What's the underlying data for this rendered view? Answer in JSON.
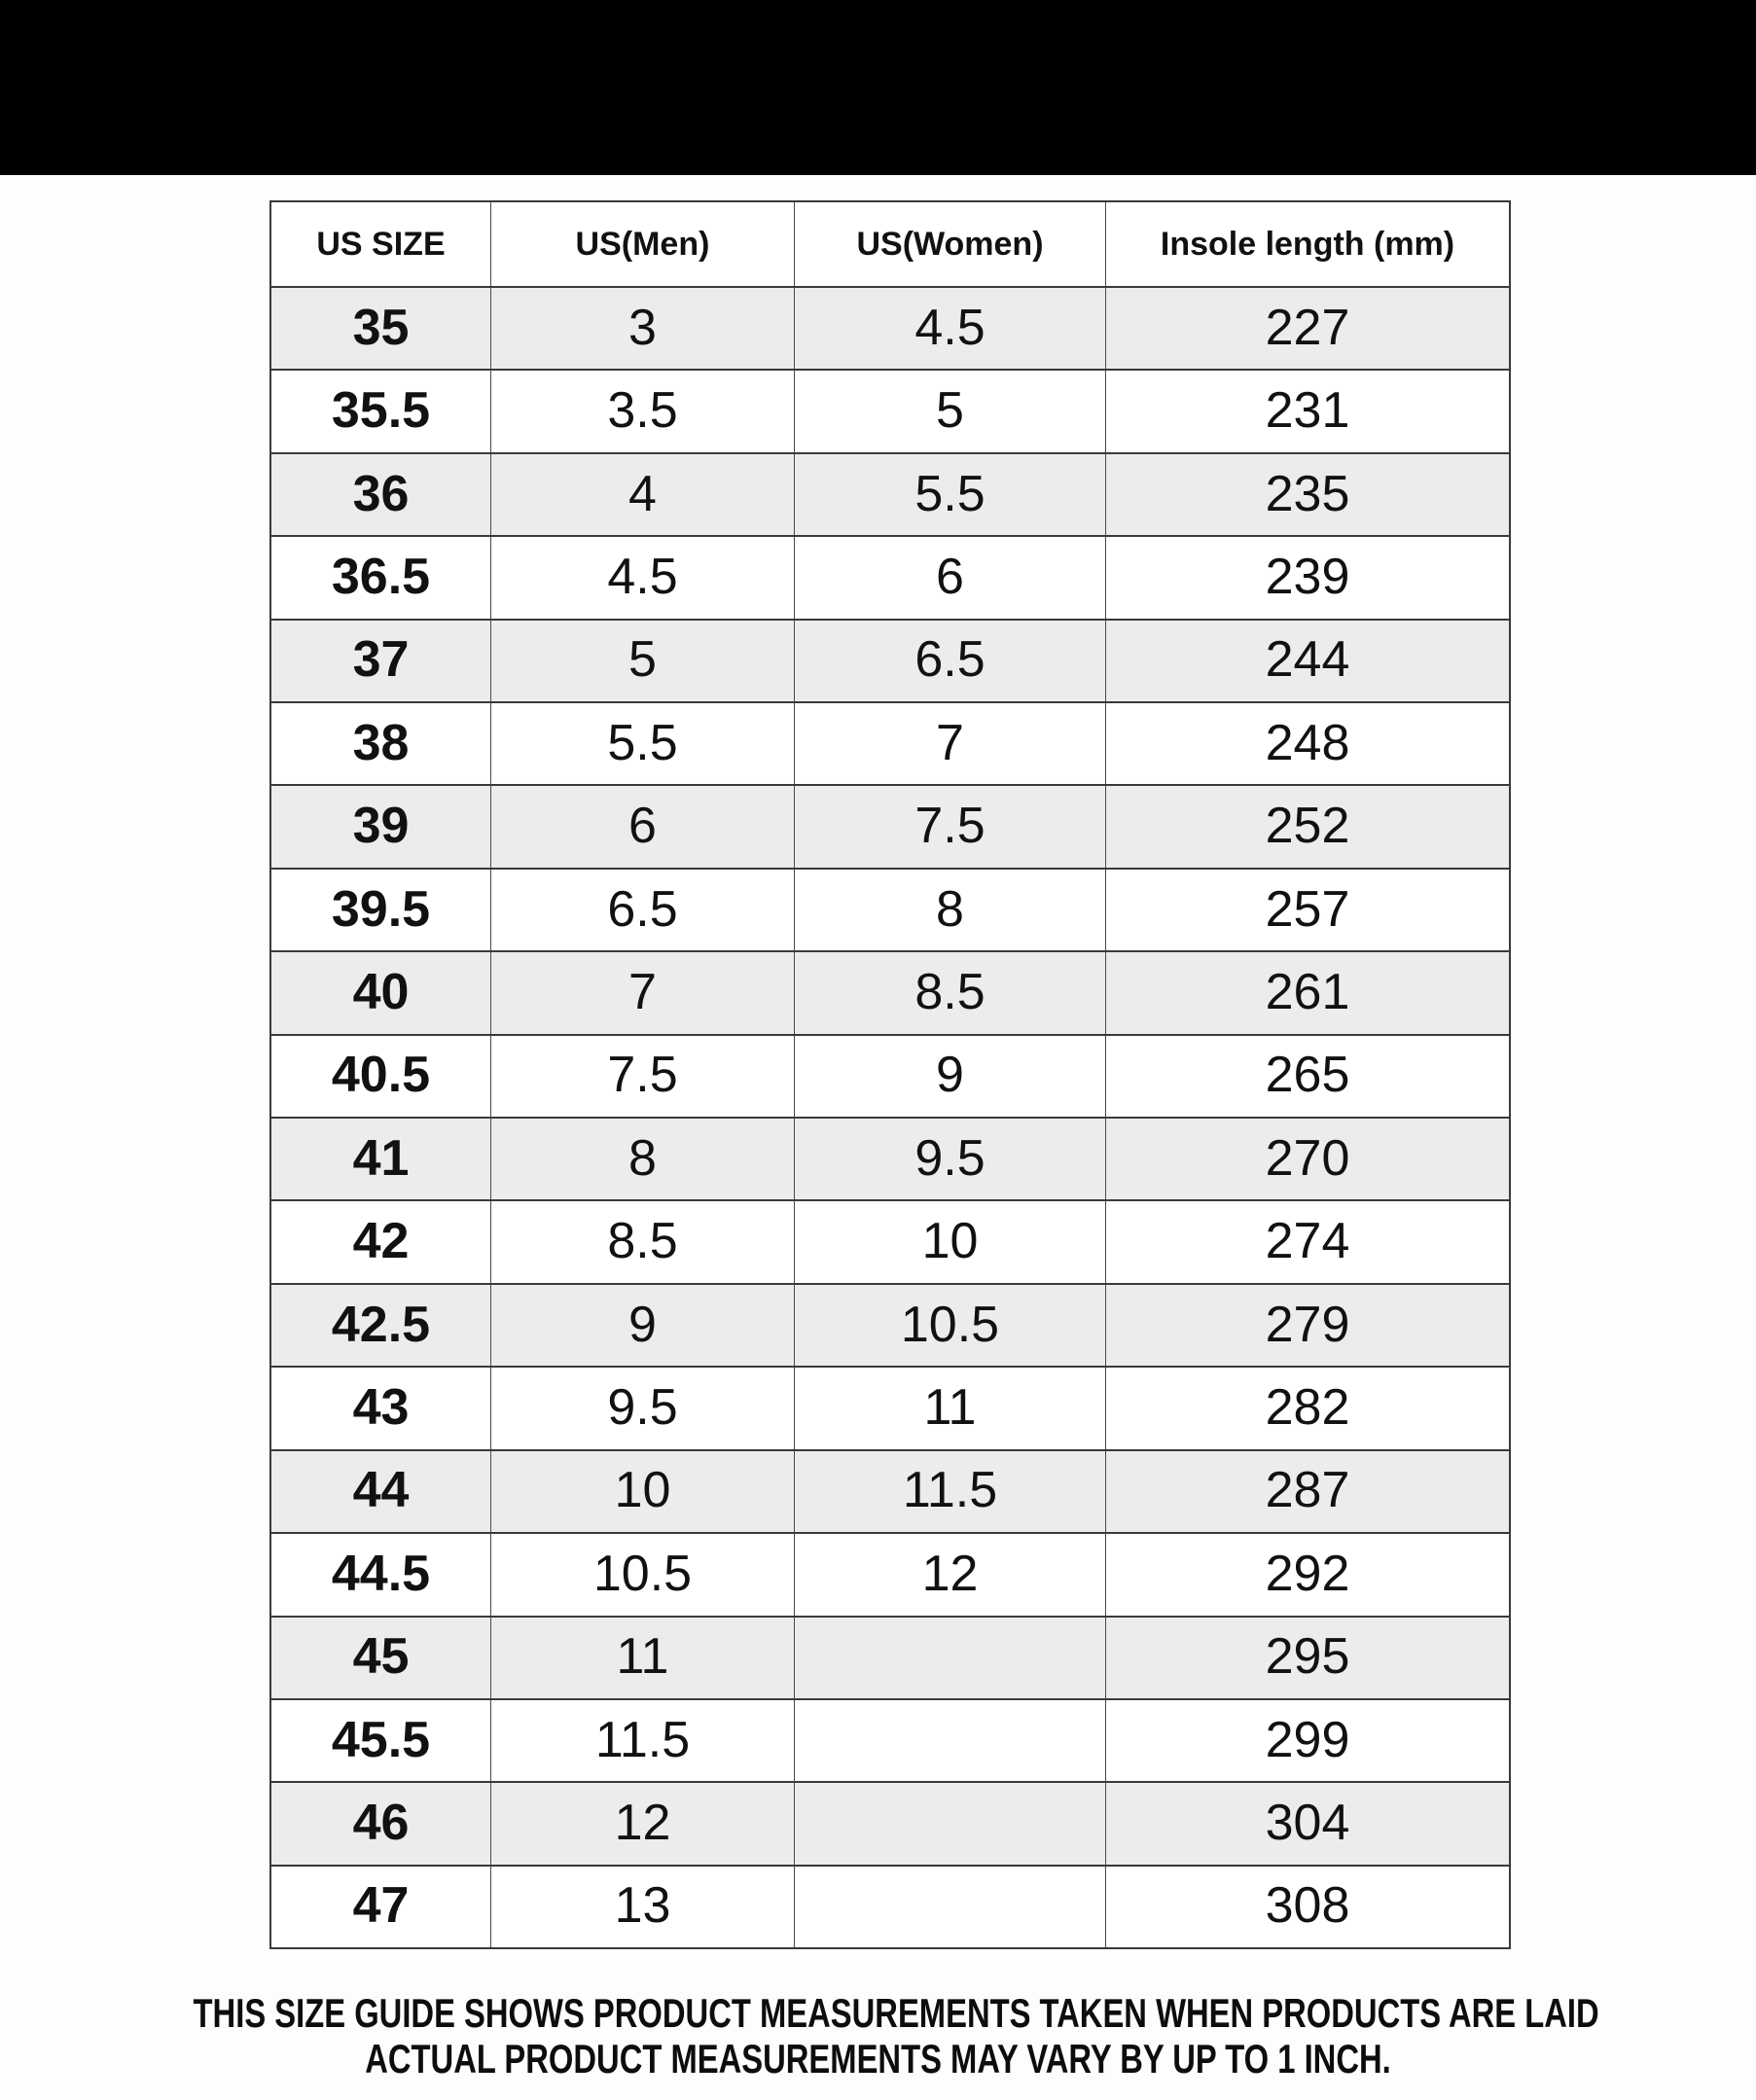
{
  "colors": {
    "top_bar": "#000000",
    "row_alt": "#ececec",
    "row": "#ffffff",
    "border": "#3a3a3a",
    "border_v": "#4a4a4a",
    "text": "#111111",
    "page_bg": "#fdfdfd"
  },
  "chart_data": {
    "type": "table",
    "columns": [
      "US SIZE",
      "US(Men)",
      "US(Women)",
      "Insole length (mm)"
    ],
    "rows": [
      [
        "35",
        "3",
        "4.5",
        "227"
      ],
      [
        "35.5",
        "3.5",
        "5",
        "231"
      ],
      [
        "36",
        "4",
        "5.5",
        "235"
      ],
      [
        "36.5",
        "4.5",
        "6",
        "239"
      ],
      [
        "37",
        "5",
        "6.5",
        "244"
      ],
      [
        "38",
        "5.5",
        "7",
        "248"
      ],
      [
        "39",
        "6",
        "7.5",
        "252"
      ],
      [
        "39.5",
        "6.5",
        "8",
        "257"
      ],
      [
        "40",
        "7",
        "8.5",
        "261"
      ],
      [
        "40.5",
        "7.5",
        "9",
        "265"
      ],
      [
        "41",
        "8",
        "9.5",
        "270"
      ],
      [
        "42",
        "8.5",
        "10",
        "274"
      ],
      [
        "42.5",
        "9",
        "10.5",
        "279"
      ],
      [
        "43",
        "9.5",
        "11",
        "282"
      ],
      [
        "44",
        "10",
        "11.5",
        "287"
      ],
      [
        "44.5",
        "10.5",
        "12",
        "292"
      ],
      [
        "45",
        "11",
        "",
        "295"
      ],
      [
        "45.5",
        "11.5",
        "",
        "299"
      ],
      [
        "46",
        "12",
        "",
        "304"
      ],
      [
        "47",
        "13",
        "",
        "308"
      ]
    ]
  },
  "footer": {
    "line1": "THIS SIZE GUIDE SHOWS PRODUCT MEASUREMENTS TAKEN WHEN PRODUCTS ARE LAID",
    "line2": "ACTUAL PRODUCT MEASUREMENTS MAY VARY BY UP TO 1 INCH."
  }
}
